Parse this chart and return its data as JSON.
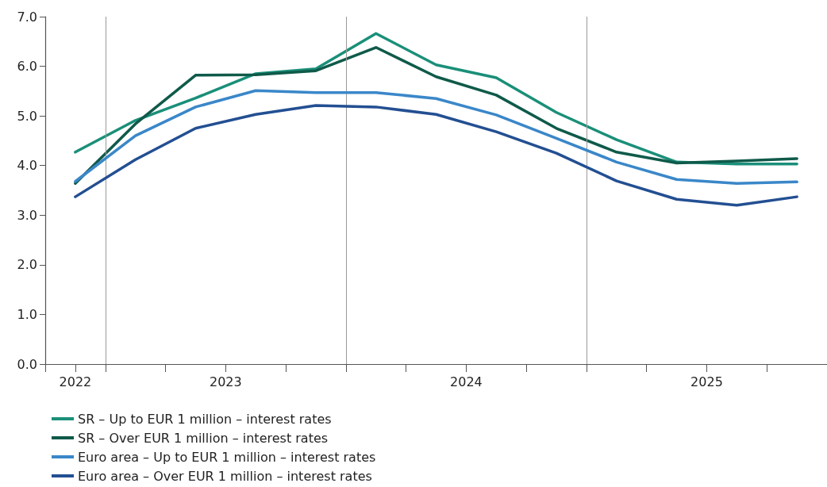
{
  "chart_data": {
    "type": "line",
    "x": [
      2022.375,
      2022.625,
      2022.875,
      2023.125,
      2023.375,
      2023.625,
      2023.875,
      2024.125,
      2024.375,
      2024.625,
      2024.875,
      2025.125,
      2025.375
    ],
    "series": [
      {
        "name": "SR – Up to EUR 1 million – interest rates",
        "color": "#1a8f79",
        "values": [
          4.27,
          4.91,
          5.36,
          5.85,
          5.95,
          6.66,
          6.03,
          5.77,
          5.07,
          4.52,
          4.07,
          4.03,
          4.03
        ]
      },
      {
        "name": "SR – Over EUR 1 million – interest rates",
        "color": "#0f5a4a",
        "values": [
          3.64,
          4.84,
          5.82,
          5.83,
          5.91,
          6.38,
          5.79,
          5.42,
          4.75,
          4.27,
          4.05,
          4.09,
          4.14
        ]
      },
      {
        "name": "Euro area – Up to EUR 1 million – interest rates",
        "color": "#3a87c9",
        "values": [
          3.68,
          4.6,
          5.18,
          5.51,
          5.47,
          5.47,
          5.35,
          5.02,
          4.55,
          4.07,
          3.72,
          3.64,
          3.67
        ]
      },
      {
        "name": "Euro area – Over EUR 1 million – interest rates",
        "color": "#234f92",
        "values": [
          3.37,
          4.12,
          4.75,
          5.03,
          5.21,
          5.18,
          5.03,
          4.68,
          4.25,
          3.69,
          3.32,
          3.2,
          3.37
        ]
      }
    ],
    "xlim": [
      2022.25,
      2025.5
    ],
    "xticks": [
      {
        "value": 2022.25,
        "label": null
      },
      {
        "value": 2022.375,
        "label": "2022"
      },
      {
        "value": 2022.5,
        "label": null
      },
      {
        "value": 2022.75,
        "label": null
      },
      {
        "value": 2023,
        "label": "2023"
      },
      {
        "value": 2023.25,
        "label": null
      },
      {
        "value": 2023.5,
        "label": null
      },
      {
        "value": 2023.75,
        "label": null
      },
      {
        "value": 2024,
        "label": "2024"
      },
      {
        "value": 2024.25,
        "label": null
      },
      {
        "value": 2024.5,
        "label": null
      },
      {
        "value": 2024.75,
        "label": null
      },
      {
        "value": 2025,
        "label": "2025"
      },
      {
        "value": 2025.25,
        "label": null
      }
    ],
    "ylim": [
      0,
      7
    ],
    "yticks": [
      {
        "value": 0,
        "label": "0.0"
      },
      {
        "value": 1,
        "label": "1.0"
      },
      {
        "value": 2,
        "label": "2.0"
      },
      {
        "value": 3,
        "label": "3.0"
      },
      {
        "value": 4,
        "label": "4.0"
      },
      {
        "value": 5,
        "label": "5.0"
      },
      {
        "value": 6,
        "label": "6.0"
      },
      {
        "value": 7,
        "label": "7.0"
      }
    ],
    "ref_lines": [
      {
        "axis": "x",
        "value": 2022.5,
        "color": "#9a9a9a"
      },
      {
        "axis": "x",
        "value": 2023.5,
        "color": "#9a9a9a"
      },
      {
        "axis": "x",
        "value": 2024.5,
        "color": "#9a9a9a"
      }
    ],
    "grid": false,
    "legend": "bottom left",
    "marker": "none",
    "line_style": "solid"
  }
}
